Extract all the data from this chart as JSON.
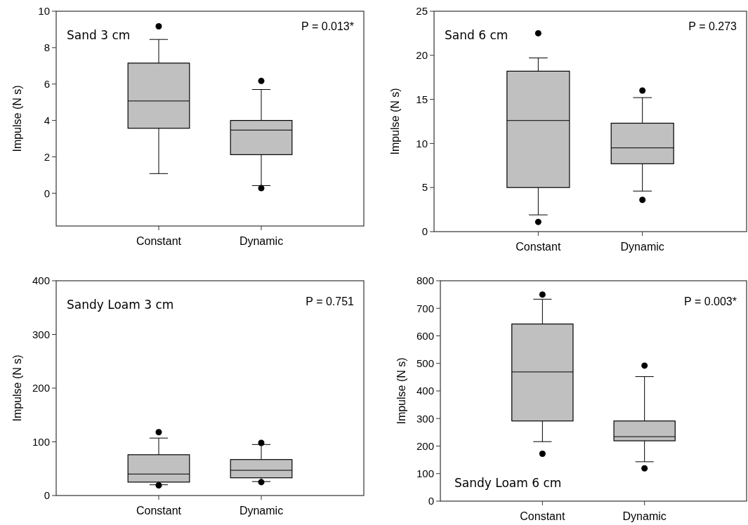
{
  "chart_data": [
    {
      "type": "box",
      "categories": [
        "Constant",
        "Dynamic"
      ],
      "ylabel": "Impulse (N s)",
      "ylim": [
        -1.8,
        10
      ],
      "yticks": [
        0,
        2,
        4,
        6,
        8,
        10
      ],
      "annotations": [
        "Sand 3 cm",
        "P = 0.013*"
      ],
      "series": [
        {
          "color": "#c0c0c0",
          "boxes": [
            {
              "low": 1.08,
              "q1": 3.57,
              "median": 5.07,
              "q3": 7.15,
              "high": 8.45,
              "outliers": [
                9.17
              ]
            },
            {
              "low": 0.42,
              "q1": 2.12,
              "median": 3.47,
              "q3": 4.0,
              "high": 5.7,
              "outliers": [
                6.17,
                0.28
              ]
            }
          ]
        }
      ]
    },
    {
      "type": "box",
      "categories": [
        "Constant",
        "Dynamic"
      ],
      "ylabel": "Impulse (N s)",
      "ylim": [
        0,
        25
      ],
      "yticks": [
        0,
        5,
        10,
        15,
        20,
        25
      ],
      "annotations": [
        "Sand 6 cm",
        "P = 0.273"
      ],
      "series": [
        {
          "color": "#c0c0c0",
          "boxes": [
            {
              "low": 1.9,
              "q1": 5.0,
              "median": 12.6,
              "q3": 18.2,
              "high": 19.7,
              "outliers": [
                22.5,
                1.1
              ]
            },
            {
              "low": 4.6,
              "q1": 7.7,
              "median": 9.5,
              "q3": 12.3,
              "high": 15.2,
              "outliers": [
                16.0,
                3.6
              ]
            }
          ]
        }
      ]
    },
    {
      "type": "box",
      "categories": [
        "Constant",
        "Dynamic"
      ],
      "ylabel": "Impulse (N s)",
      "ylim": [
        0,
        400
      ],
      "yticks": [
        0,
        100,
        200,
        300,
        400
      ],
      "annotations": [
        "Sandy Loam 3 cm",
        "P = 0.751"
      ],
      "series": [
        {
          "color": "#c0c0c0",
          "boxes": [
            {
              "low": 20,
              "q1": 25,
              "median": 40,
              "q3": 76,
              "high": 107,
              "outliers": [
                118,
                19
              ]
            },
            {
              "low": 26,
              "q1": 33,
              "median": 47,
              "q3": 67,
              "high": 95,
              "outliers": [
                98,
                25
              ]
            }
          ]
        }
      ]
    },
    {
      "type": "box",
      "categories": [
        "Constant",
        "Dynamic"
      ],
      "ylabel": "Impulse (N s)",
      "ylim": [
        0,
        800
      ],
      "yticks": [
        0,
        100,
        200,
        300,
        400,
        500,
        600,
        700,
        800
      ],
      "annotations": [
        "Sandy Loam 6 cm",
        "P = 0.003*"
      ],
      "series": [
        {
          "color": "#c0c0c0",
          "boxes": [
            {
              "low": 216,
              "q1": 291,
              "median": 469,
              "q3": 643,
              "high": 733,
              "outliers": [
                750,
                172
              ]
            },
            {
              "low": 143,
              "q1": 219,
              "median": 234,
              "q3": 291,
              "high": 452,
              "outliers": [
                492,
                119
              ]
            }
          ]
        }
      ]
    }
  ]
}
